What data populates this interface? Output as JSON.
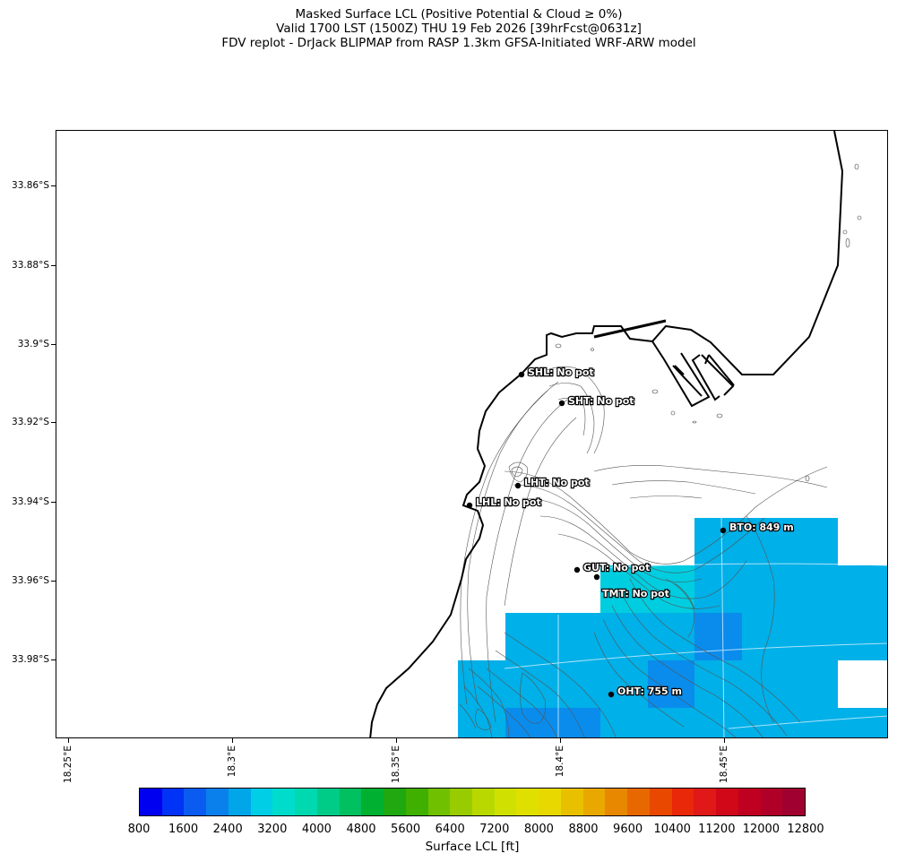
{
  "title": {
    "line1": "Masked Surface LCL (Positive Potential & Cloud ≥ 0%)",
    "line2": "Valid 1700 LST (1500Z) THU 19 Feb 2026 [39hrFcst@0631z]",
    "line3": "FDV replot - DrJack BLIPMAP from RASP 1.3km GFSA-Initiated WRF-ARW model"
  },
  "axes": {
    "lat_labels": [
      "33.86°S",
      "33.88°S",
      "33.9°S",
      "33.92°S",
      "33.94°S",
      "33.96°S",
      "33.98°S"
    ],
    "lon_labels": [
      "18.25°E",
      "18.3°E",
      "18.35°E",
      "18.4°E",
      "18.45°E"
    ]
  },
  "stations": [
    {
      "id": "SHL",
      "label": "SHL: No pot"
    },
    {
      "id": "SHT",
      "label": "SHT: No pot"
    },
    {
      "id": "LHT",
      "label": "LHT: No pot"
    },
    {
      "id": "LHL",
      "label": "LHL: No pot"
    },
    {
      "id": "BTO",
      "label": "BTO: 849 m"
    },
    {
      "id": "GUT",
      "label": "GUT: No pot"
    },
    {
      "id": "TMT",
      "label": "TMT: No pot"
    },
    {
      "id": "OHT",
      "label": "OHT: 755 m"
    }
  ],
  "colorbar": {
    "label": "Surface LCL [ft]",
    "ticks": [
      "800",
      "1600",
      "2400",
      "3200",
      "4000",
      "4800",
      "5600",
      "6400",
      "7200",
      "8000",
      "8800",
      "9600",
      "10400",
      "11200",
      "12000",
      "12800"
    ],
    "colors": [
      "#0000f0",
      "#0033f5",
      "#0a5cf0",
      "#0a80ec",
      "#00a6e8",
      "#00cde6",
      "#00dccc",
      "#00d8b0",
      "#00cc88",
      "#00c060",
      "#00b030",
      "#20a810",
      "#40b000",
      "#70c000",
      "#98cc00",
      "#b8d800",
      "#d0e000",
      "#e0e000",
      "#e8d800",
      "#e8c000",
      "#e8a800",
      "#e88800",
      "#e86800",
      "#e84800",
      "#e82808",
      "#e01818",
      "#d00818",
      "#c00020",
      "#b00028",
      "#a00030"
    ]
  },
  "chart_data": {
    "type": "heatmap",
    "variable": "Surface LCL [ft]",
    "color_scale_ft": [
      800,
      12800
    ],
    "lat_ticks": [
      "33.86°S",
      "33.88°S",
      "33.9°S",
      "33.92°S",
      "33.94°S",
      "33.96°S",
      "33.98°S"
    ],
    "lon_ticks": [
      "18.25°E",
      "18.3°E",
      "18.35°E",
      "18.4°E",
      "18.45°E"
    ]
  }
}
